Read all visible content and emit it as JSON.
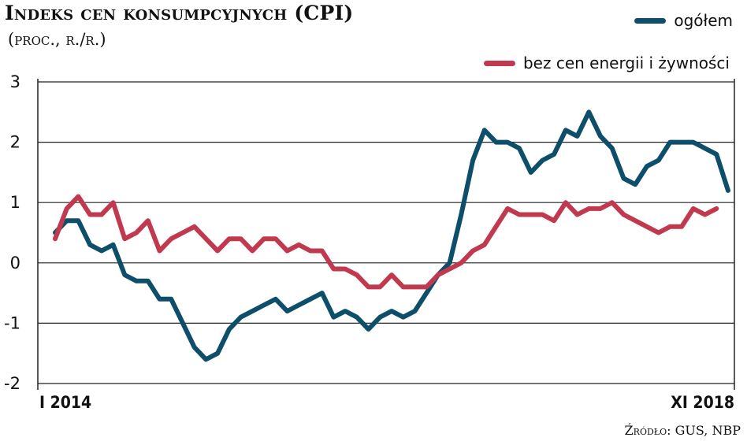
{
  "chart_data": {
    "type": "line",
    "title": "Indeks cen konsumpcyjnych (CPI)",
    "subtitle": "(proc., r./r.)",
    "ylim": [
      -2,
      3
    ],
    "y_ticks": [
      "3",
      "2",
      "1",
      "0",
      "-1",
      "-2"
    ],
    "x_start_label": "I 2014",
    "x_end_label": "XI 2018",
    "x_range": [
      "2014-01",
      "2018-11"
    ],
    "grid": "horizontal",
    "legend_placement": "top-right",
    "source": "Źródło: GUS, NBP",
    "series": [
      {
        "name": "ogółem",
        "color": "#0d4f6b",
        "values": [
          0.5,
          0.7,
          0.7,
          0.3,
          0.2,
          0.3,
          -0.2,
          -0.3,
          -0.3,
          -0.6,
          -0.6,
          -1.0,
          -1.4,
          -1.6,
          -1.5,
          -1.1,
          -0.9,
          -0.8,
          -0.7,
          -0.6,
          -0.8,
          -0.7,
          -0.6,
          -0.5,
          -0.9,
          -0.8,
          -0.9,
          -1.1,
          -0.9,
          -0.8,
          -0.9,
          -0.8,
          -0.5,
          -0.2,
          0.0,
          0.8,
          1.7,
          2.2,
          2.0,
          2.0,
          1.9,
          1.5,
          1.7,
          1.8,
          2.2,
          2.1,
          2.5,
          2.1,
          1.9,
          1.4,
          1.3,
          1.6,
          1.7,
          2.0,
          2.0,
          2.0,
          1.9,
          1.8,
          1.2
        ]
      },
      {
        "name": "bez cen energii i żywności",
        "color": "#c1394f",
        "values": [
          0.4,
          0.9,
          1.1,
          0.8,
          0.8,
          1.0,
          0.4,
          0.5,
          0.7,
          0.2,
          0.4,
          0.5,
          0.6,
          0.4,
          0.2,
          0.4,
          0.4,
          0.2,
          0.4,
          0.4,
          0.2,
          0.3,
          0.2,
          0.2,
          -0.1,
          -0.1,
          -0.2,
          -0.4,
          -0.4,
          -0.2,
          -0.4,
          -0.4,
          -0.4,
          -0.2,
          -0.1,
          0.0,
          0.2,
          0.3,
          0.6,
          0.9,
          0.8,
          0.8,
          0.8,
          0.7,
          1.0,
          0.8,
          0.9,
          0.9,
          1.0,
          0.8,
          0.7,
          0.6,
          0.5,
          0.6,
          0.6,
          0.9,
          0.8,
          0.9
        ]
      }
    ]
  }
}
